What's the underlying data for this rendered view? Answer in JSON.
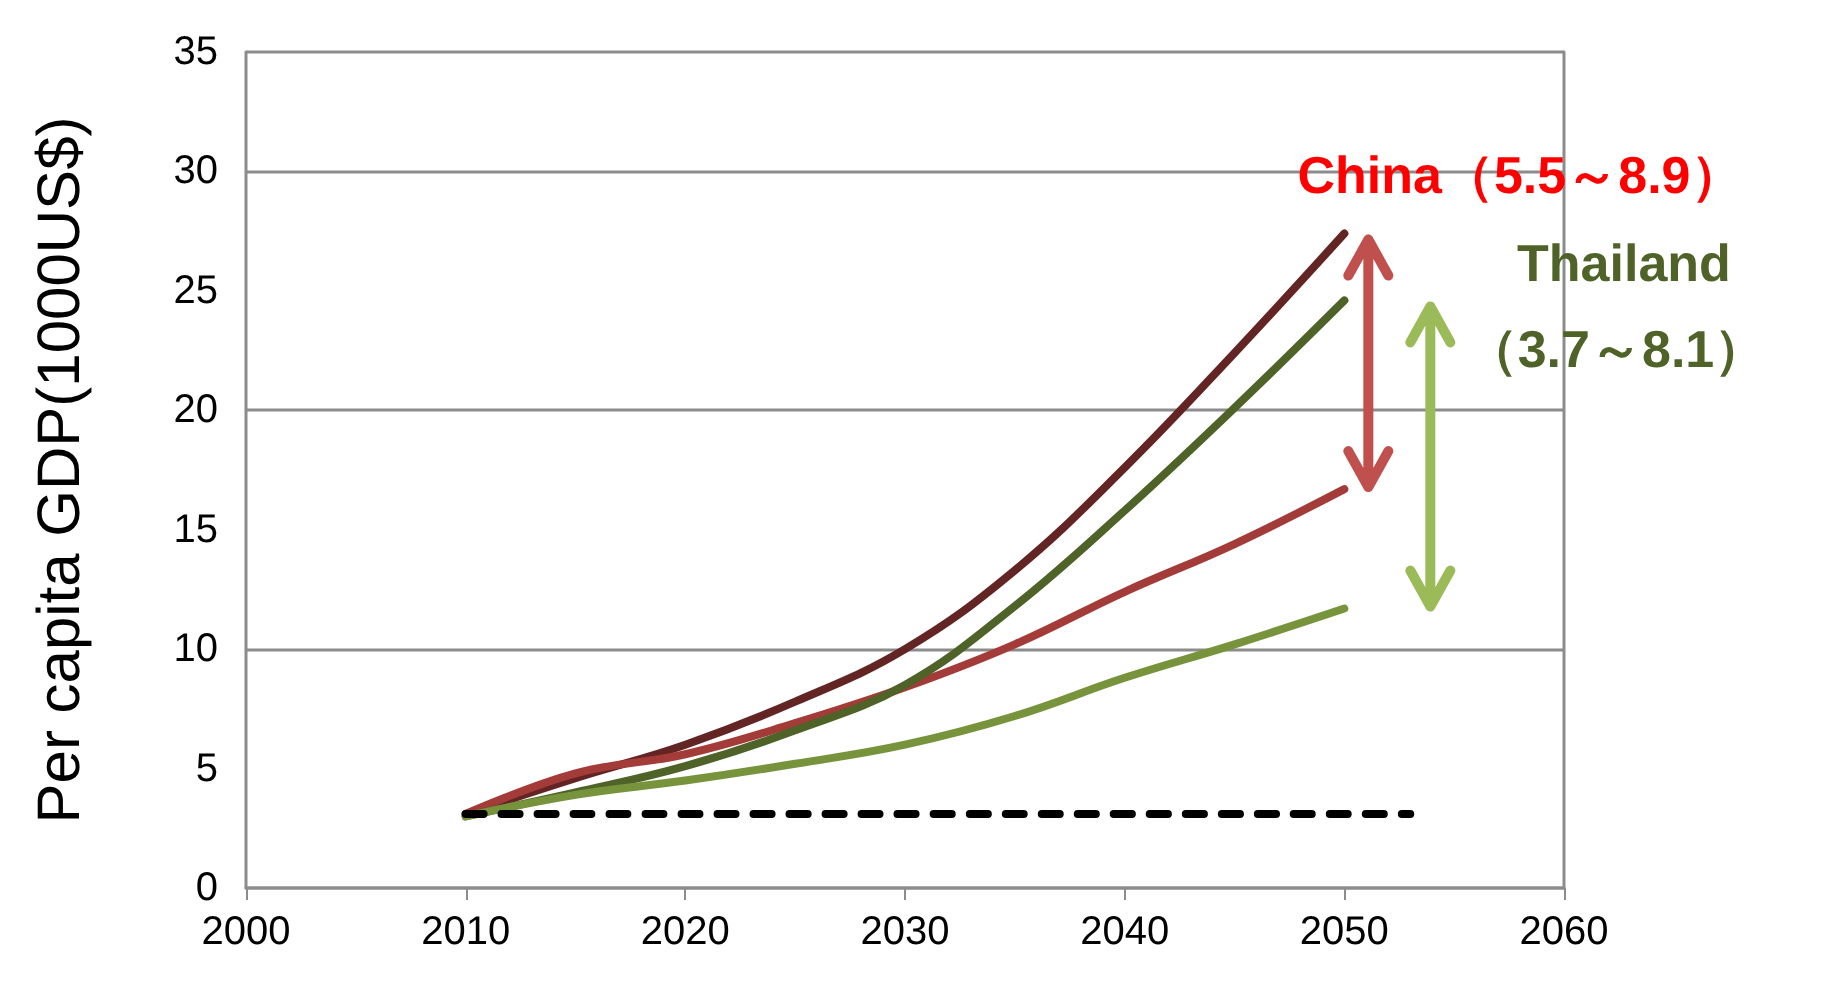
{
  "chart_data": {
    "type": "line",
    "ylabel": "Per capita GDP(1000US$)",
    "x": [
      2010,
      2015,
      2020,
      2025,
      2030,
      2035,
      2040,
      2045,
      2050
    ],
    "series": [
      {
        "color": "#632523",
        "values": [
          3.1,
          4.6,
          6.0,
          7.8,
          10.0,
          13.3,
          17.6,
          22.4,
          27.4
        ]
      },
      {
        "color": "#a33b38",
        "values": [
          3.1,
          4.8,
          5.6,
          6.9,
          8.4,
          10.2,
          12.4,
          14.4,
          16.7
        ]
      },
      {
        "color": "#4f6228",
        "values": [
          3.0,
          4.0,
          5.1,
          6.6,
          8.5,
          11.8,
          15.8,
          20.1,
          24.6
        ]
      },
      {
        "color": "#77933c",
        "values": [
          3.0,
          3.9,
          4.5,
          5.2,
          6.0,
          7.2,
          8.8,
          10.2,
          11.7
        ]
      },
      {
        "color": "#000000",
        "x": [
          2010,
          2053
        ],
        "values": [
          3.1,
          3.1
        ],
        "line_style": "dashed"
      }
    ],
    "annotations": [
      "China（5.5～8.9）",
      "Thailand",
      "（3.7～8.1）"
    ],
    "xlim": [
      2000,
      2060
    ],
    "xticks": [
      2000,
      2010,
      2020,
      2030,
      2040,
      2050,
      2060
    ],
    "ylim": [
      0,
      35
    ],
    "yticks": [
      0,
      5,
      10,
      15,
      20,
      25,
      30,
      35
    ],
    "grid": "y",
    "marker": "none",
    "line_style": "solid"
  }
}
